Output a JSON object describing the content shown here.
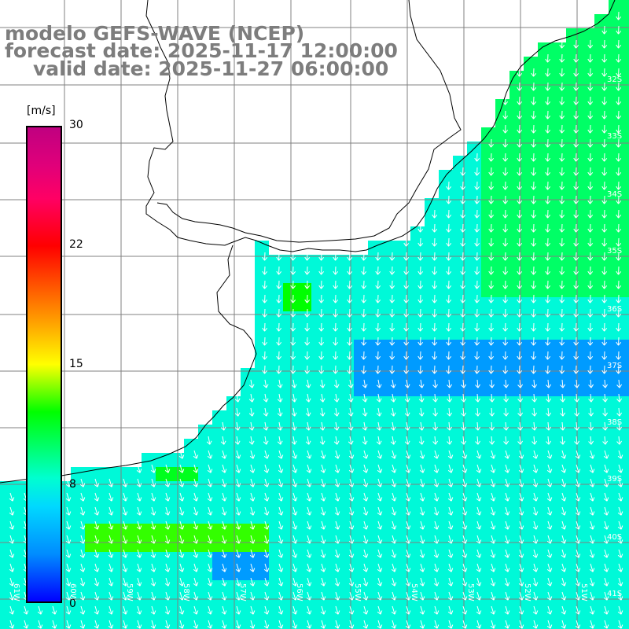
{
  "title": {
    "line1": "modelo GEFS-WAVE (NCEP)",
    "line2": "forecast date: 2025-11-17 12:00:00",
    "line3": "valid date: 2025-11-27 06:00:00"
  },
  "colorbar": {
    "unit": "[m/s]",
    "ticks": [
      "30",
      "22",
      "15",
      "8",
      "0"
    ],
    "tick_values": [
      30,
      22,
      15,
      8,
      0
    ]
  },
  "lat_labels": [
    "32S",
    "33S",
    "34S",
    "35S",
    "36S",
    "37S",
    "38S",
    "39S",
    "40S",
    "41S"
  ],
  "lon_labels": [
    "61W",
    "60W",
    "59W",
    "58W",
    "57W",
    "56W",
    "55W",
    "54W",
    "53W",
    "52W",
    "51W"
  ],
  "colors": {
    "title_gray": "#7d7d7d",
    "land": "#ffffff",
    "coast": "#000000",
    "grid": "#808080",
    "arrows": "#ffffff"
  }
}
